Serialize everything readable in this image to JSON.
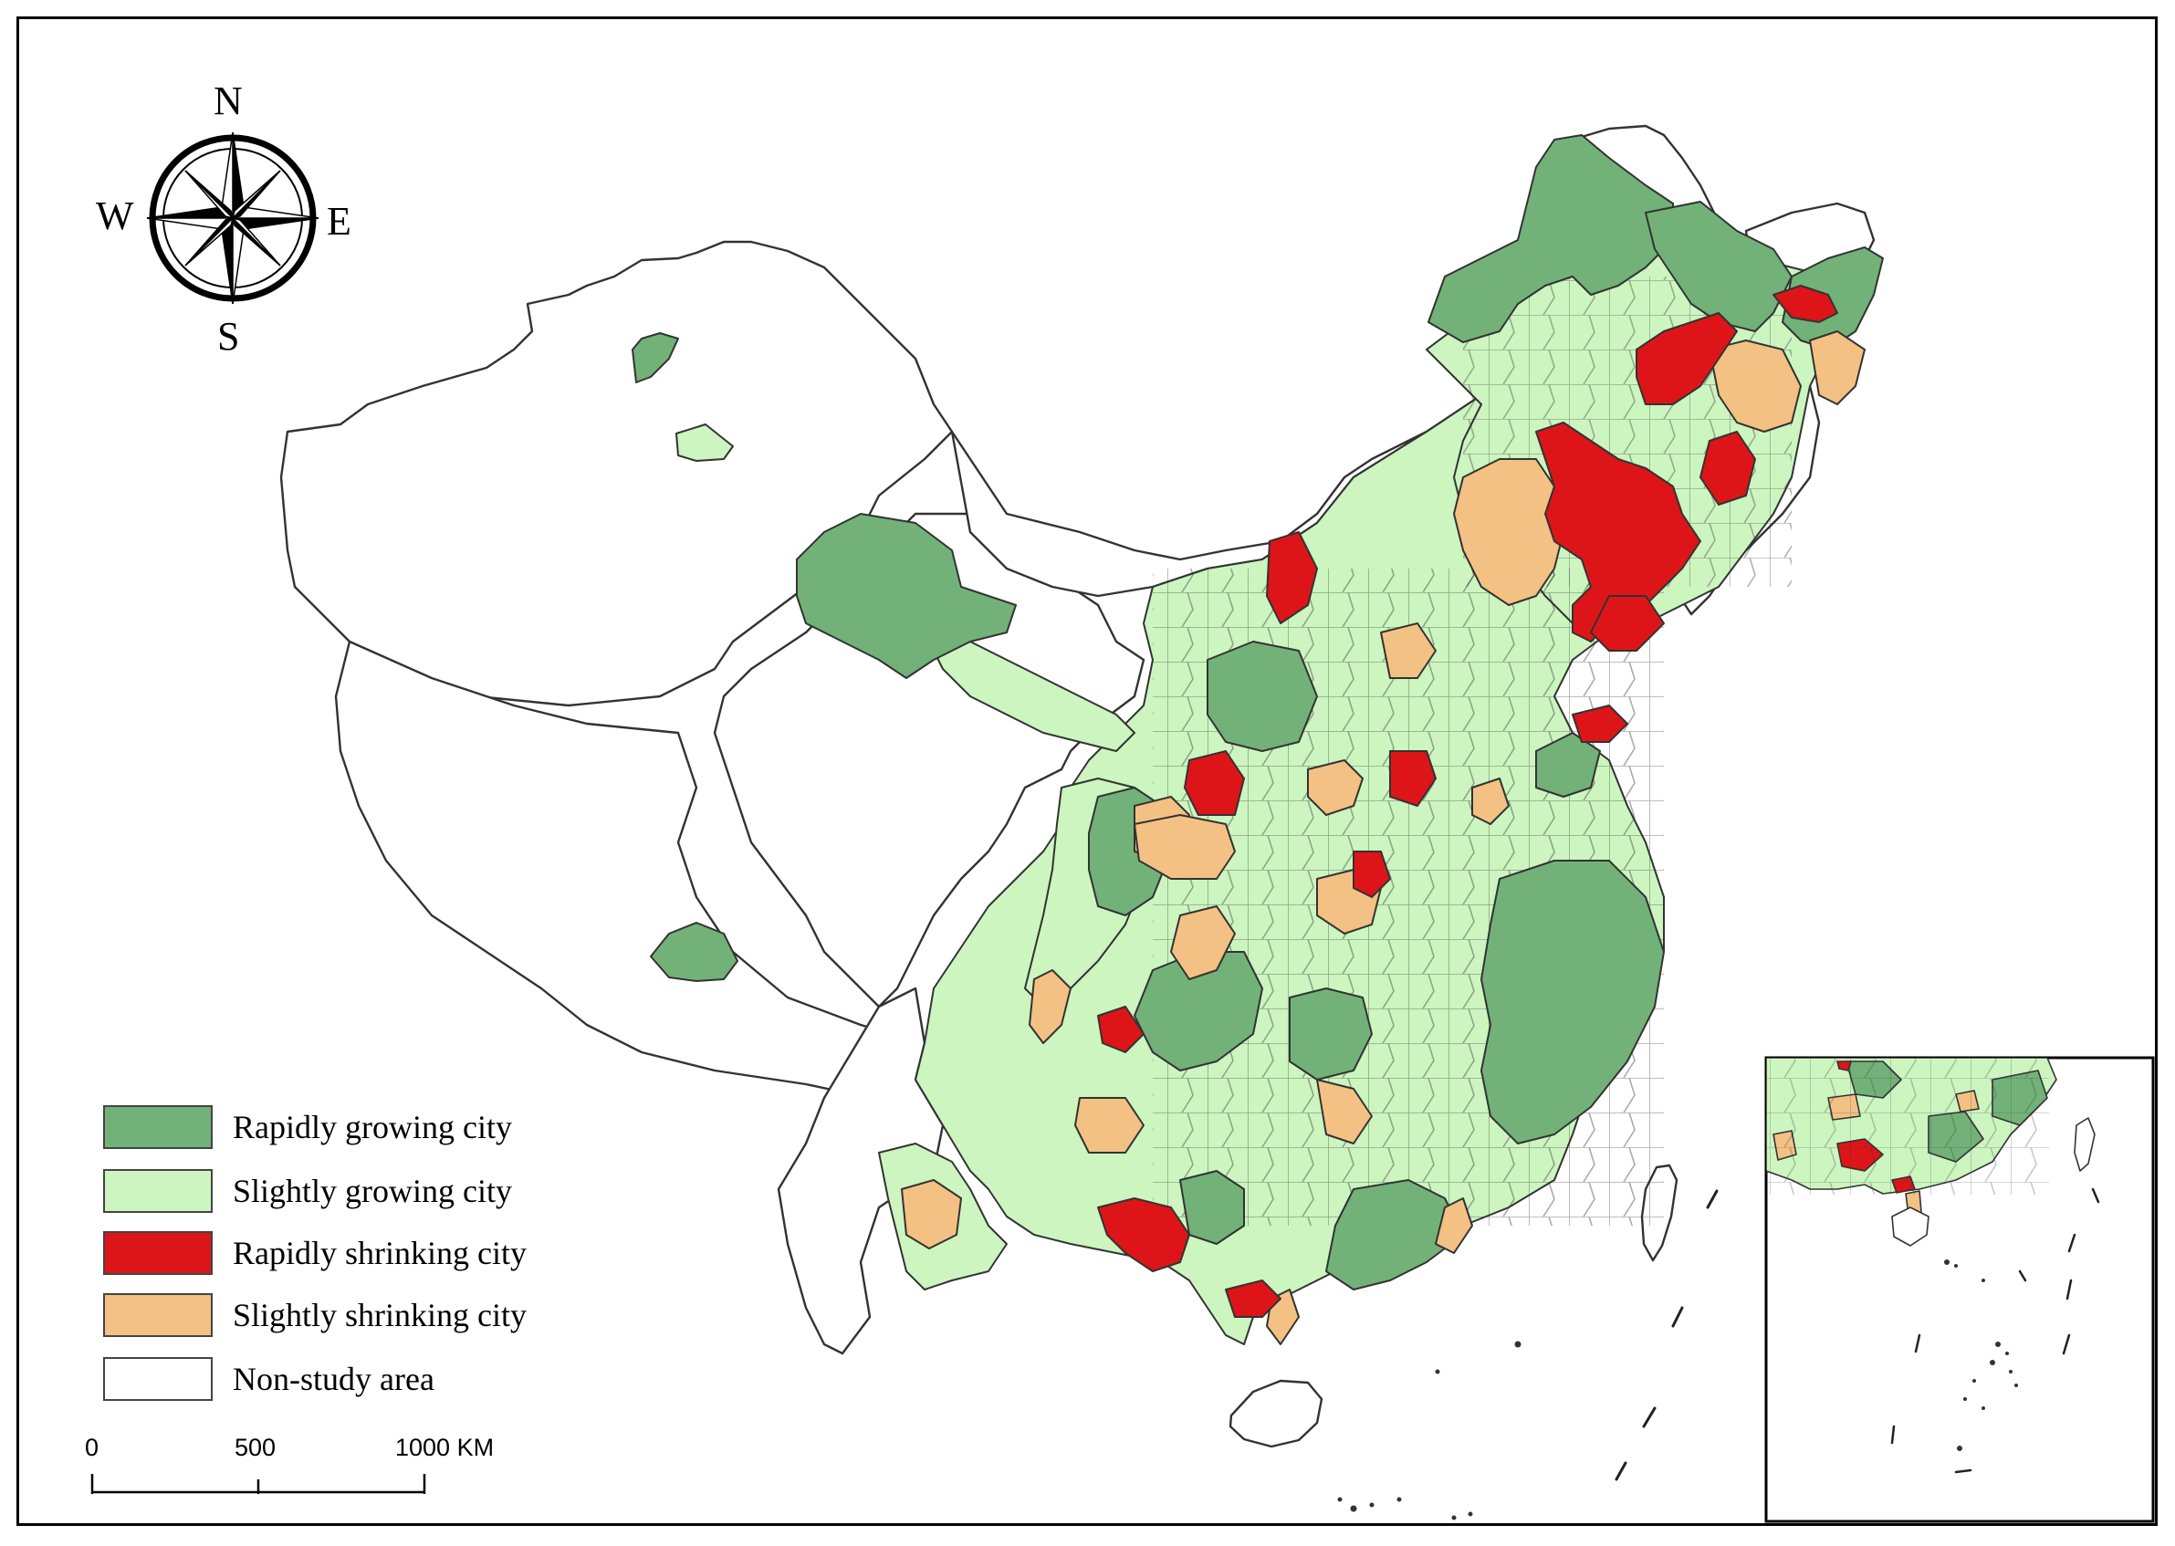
{
  "compass": {
    "n": "N",
    "s": "S",
    "e": "E",
    "w": "W",
    "icon": "compass-rose-icon"
  },
  "colors": {
    "rapidly_growing": "#72b278",
    "slightly_growing": "#ccf5c0",
    "rapidly_shrinking": "#dd1518",
    "slightly_shrinking": "#f4c184",
    "non_study": "#ffffff",
    "outline": "#333333"
  },
  "legend": {
    "items": [
      {
        "label": "Rapidly growing city",
        "color": "#72b278"
      },
      {
        "label": "Slightly growing city",
        "color": "#ccf5c0"
      },
      {
        "label": "Rapidly shrinking city",
        "color": "#dd1518"
      },
      {
        "label": "Slightly shrinking city",
        "color": "#f4c184"
      },
      {
        "label": "Non-study area",
        "color": "#ffffff"
      }
    ]
  },
  "scale_bar": {
    "labels": [
      "0",
      "500",
      "1000 KM"
    ]
  }
}
